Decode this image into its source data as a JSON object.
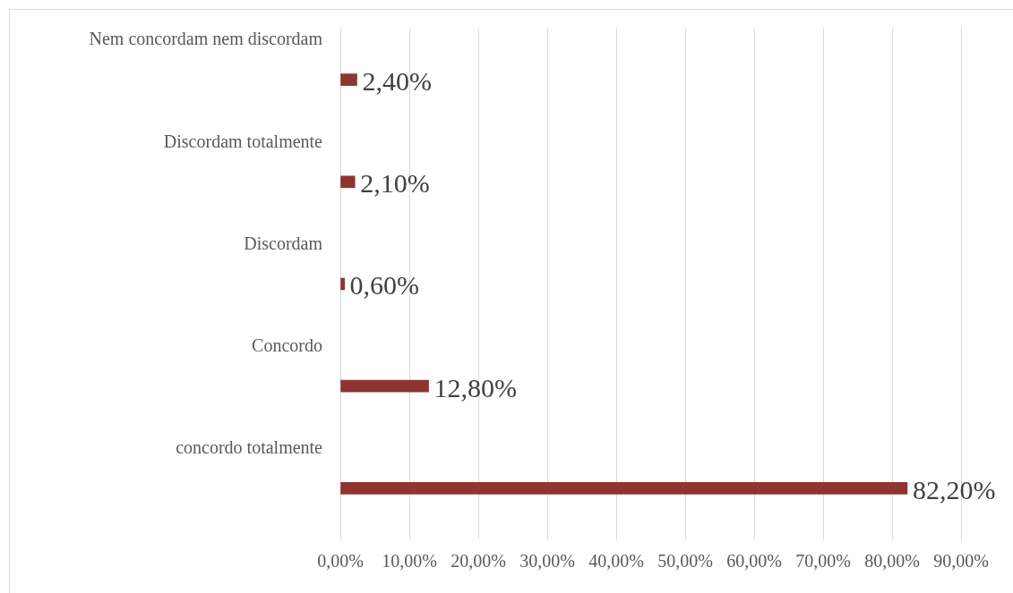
{
  "chart_data": {
    "type": "bar",
    "orientation": "horizontal",
    "categories": [
      "Nem concordam nem discordam",
      "Discordam totalmente",
      "Discordam",
      "Concordo",
      "concordo totalmente"
    ],
    "values": [
      2.4,
      2.1,
      0.6,
      12.8,
      82.2
    ],
    "value_labels": [
      "2,40%",
      "2,10%",
      "0,60%",
      "12,80%",
      "82,20%"
    ],
    "color": "#8e3432",
    "xlim": [
      0,
      90
    ],
    "xticks": [
      {
        "value": 0,
        "label": "0,00%"
      },
      {
        "value": 10,
        "label": "10,00%"
      },
      {
        "value": 20,
        "label": "20,00%"
      },
      {
        "value": 30,
        "label": "30,00%"
      },
      {
        "value": 40,
        "label": "40,00%"
      },
      {
        "value": 50,
        "label": "50,00%"
      },
      {
        "value": 60,
        "label": "60,00%"
      },
      {
        "value": 70,
        "label": "70,00%"
      },
      {
        "value": 80,
        "label": "80,00%"
      },
      {
        "value": 90,
        "label": "90,00%"
      }
    ],
    "grid": "x"
  }
}
